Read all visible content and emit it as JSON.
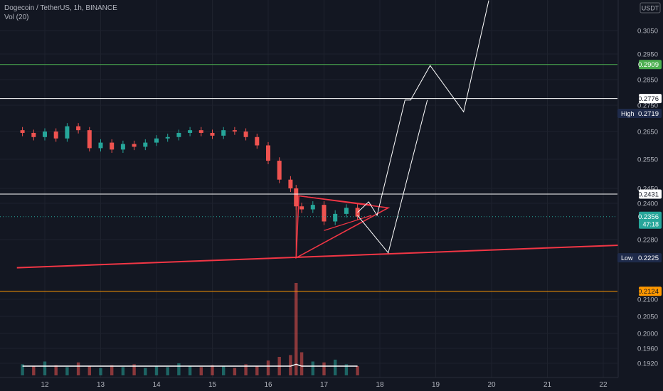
{
  "legend": {
    "symbol_line": "Dogecoin / TetherUS, 1h, BINANCE",
    "volume_line": "Vol (20)"
  },
  "currency": "USDT",
  "colors": {
    "background": "#131722",
    "up": "#26a69a",
    "down": "#ef5350",
    "grid": "#1e222d",
    "axis_text": "#b2b5be",
    "pattern": "#f23645",
    "projection": "#ffffff",
    "resistance_green": "#4caf50",
    "support_orange": "#ff9800",
    "current_price": "#26a69a"
  },
  "chart_data": {
    "type": "candlestick",
    "x_tick_labels": [
      "12",
      "13",
      "14",
      "15",
      "16",
      "17",
      "18",
      "19",
      "20",
      "21",
      "22"
    ],
    "y_tick_labels": [
      "0.3050",
      "0.2950",
      "0.2850",
      "0.2750",
      "0.2650",
      "0.2550",
      "0.2450",
      "0.2400",
      "0.2280",
      "0.2100",
      "0.2050",
      "0.2000",
      "0.1960",
      "0.1920"
    ],
    "price_series": [
      {
        "day": 11.6,
        "close": 0.2645
      },
      {
        "day": 11.8,
        "close": 0.263
      },
      {
        "day": 12.0,
        "close": 0.265
      },
      {
        "day": 12.2,
        "close": 0.2625
      },
      {
        "day": 12.4,
        "close": 0.267
      },
      {
        "day": 12.6,
        "close": 0.2655
      },
      {
        "day": 12.8,
        "close": 0.259
      },
      {
        "day": 13.0,
        "close": 0.261
      },
      {
        "day": 13.2,
        "close": 0.2585
      },
      {
        "day": 13.4,
        "close": 0.2605
      },
      {
        "day": 13.6,
        "close": 0.2595
      },
      {
        "day": 13.8,
        "close": 0.261
      },
      {
        "day": 14.0,
        "close": 0.2625
      },
      {
        "day": 14.2,
        "close": 0.263
      },
      {
        "day": 14.4,
        "close": 0.2645
      },
      {
        "day": 14.6,
        "close": 0.2655
      },
      {
        "day": 14.8,
        "close": 0.2645
      },
      {
        "day": 15.0,
        "close": 0.2635
      },
      {
        "day": 15.2,
        "close": 0.2655
      },
      {
        "day": 15.4,
        "close": 0.265
      },
      {
        "day": 15.6,
        "close": 0.263
      },
      {
        "day": 15.8,
        "close": 0.26
      },
      {
        "day": 16.0,
        "close": 0.2545
      },
      {
        "day": 16.2,
        "close": 0.248
      },
      {
        "day": 16.4,
        "close": 0.245
      },
      {
        "day": 16.5,
        "close": 0.239
      },
      {
        "day": 16.6,
        "close": 0.238
      },
      {
        "day": 16.8,
        "close": 0.2395
      },
      {
        "day": 17.0,
        "close": 0.234
      },
      {
        "day": 17.2,
        "close": 0.2365
      },
      {
        "day": 17.4,
        "close": 0.2385
      },
      {
        "day": 17.6,
        "close": 0.2356
      }
    ],
    "volume_series": [
      {
        "day": 11.6,
        "volume": 0.12
      },
      {
        "day": 11.8,
        "volume": 0.1
      },
      {
        "day": 12.0,
        "volume": 0.15
      },
      {
        "day": 12.2,
        "volume": 0.11
      },
      {
        "day": 12.4,
        "volume": 0.09
      },
      {
        "day": 12.6,
        "volume": 0.14
      },
      {
        "day": 12.8,
        "volume": 0.1
      },
      {
        "day": 13.0,
        "volume": 0.08
      },
      {
        "day": 13.2,
        "volume": 0.11
      },
      {
        "day": 13.4,
        "volume": 0.09
      },
      {
        "day": 13.6,
        "volume": 0.12
      },
      {
        "day": 13.8,
        "volume": 0.08
      },
      {
        "day": 14.0,
        "volume": 0.1
      },
      {
        "day": 14.2,
        "volume": 0.09
      },
      {
        "day": 14.4,
        "volume": 0.13
      },
      {
        "day": 14.6,
        "volume": 0.1
      },
      {
        "day": 14.8,
        "volume": 0.09
      },
      {
        "day": 15.0,
        "volume": 0.11
      },
      {
        "day": 15.2,
        "volume": 0.1
      },
      {
        "day": 15.4,
        "volume": 0.08
      },
      {
        "day": 15.6,
        "volume": 0.12
      },
      {
        "day": 15.8,
        "volume": 0.1
      },
      {
        "day": 16.0,
        "volume": 0.16
      },
      {
        "day": 16.2,
        "volume": 0.2
      },
      {
        "day": 16.4,
        "volume": 0.22
      },
      {
        "day": 16.5,
        "volume": 1.0
      },
      {
        "day": 16.6,
        "volume": 0.25
      },
      {
        "day": 16.8,
        "volume": 0.15
      },
      {
        "day": 17.0,
        "volume": 0.14
      },
      {
        "day": 17.2,
        "volume": 0.17
      },
      {
        "day": 17.4,
        "volume": 0.12
      },
      {
        "day": 17.6,
        "volume": 0.1
      }
    ],
    "horizontal_lines": [
      {
        "price": 0.2909,
        "label": "0.2909",
        "color": "#4caf50"
      },
      {
        "price": 0.2776,
        "label": "0.2776",
        "color": "#ffffff"
      },
      {
        "price": 0.2431,
        "label": "0.2431",
        "color": "#ffffff"
      },
      {
        "price": 0.2124,
        "label": "0.2124",
        "color": "#ff9800"
      }
    ],
    "current_price": {
      "price": 0.2356,
      "label": "0.2356",
      "countdown": "47:18"
    },
    "high": {
      "price": 0.2719,
      "tag": "High",
      "label": "0.2719"
    },
    "low": {
      "price": 0.2225,
      "tag": "Low",
      "label": "0.2225"
    },
    "trendline": {
      "start": {
        "day": 11.5,
        "price": 0.2195
      },
      "end": {
        "day": 22.6,
        "price": 0.2265
      }
    },
    "triangle": [
      {
        "day": 16.5,
        "price": 0.2225
      },
      {
        "day": 16.55,
        "price": 0.2425
      },
      {
        "day": 18.15,
        "price": 0.2385
      }
    ],
    "triangle_inner_lines": [
      [
        {
          "day": 16.55,
          "price": 0.2425
        },
        {
          "day": 17.85,
          "price": 0.2395
        }
      ],
      [
        {
          "day": 17.0,
          "price": 0.231
        },
        {
          "day": 17.85,
          "price": 0.236
        }
      ]
    ],
    "projection_path_a": [
      {
        "day": 17.6,
        "price": 0.237
      },
      {
        "day": 17.8,
        "price": 0.2405
      },
      {
        "day": 17.95,
        "price": 0.236
      },
      {
        "day": 18.45,
        "price": 0.277
      },
      {
        "day": 18.55,
        "price": 0.277
      },
      {
        "day": 18.9,
        "price": 0.2905
      },
      {
        "day": 19.5,
        "price": 0.2725
      },
      {
        "day": 19.95,
        "price": 0.317
      }
    ],
    "projection_path_b": [
      {
        "day": 17.6,
        "price": 0.236
      },
      {
        "day": 18.15,
        "price": 0.224
      },
      {
        "day": 18.85,
        "price": 0.277
      }
    ]
  }
}
